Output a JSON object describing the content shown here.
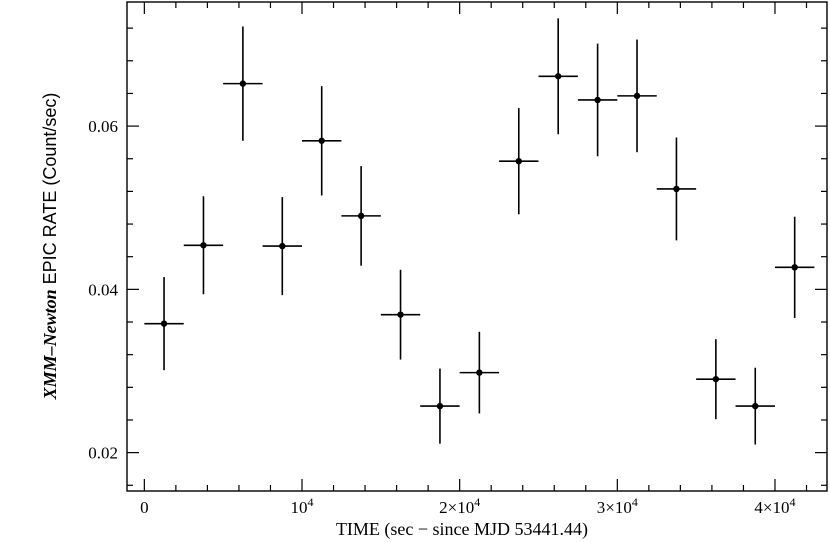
{
  "chart_data": {
    "type": "scatter",
    "title": "",
    "xlabel": "TIME (sec − since MJD 53441.44)",
    "ylabel_italic": "XMM–Newton",
    "ylabel_rest": " EPIC RATE (Count/sec)",
    "xlim": [
      -1100,
      43300
    ],
    "ylim": [
      0.0153,
      0.0752
    ],
    "grid": false,
    "x_ticks": [
      {
        "value": 0,
        "base": "0",
        "exp": ""
      },
      {
        "value": 10000,
        "base": "10",
        "exp": "4"
      },
      {
        "value": 20000,
        "base": "2×10",
        "exp": "4"
      },
      {
        "value": 30000,
        "base": "3×10",
        "exp": "4"
      },
      {
        "value": 40000,
        "base": "4×10",
        "exp": "4"
      }
    ],
    "y_ticks": [
      {
        "value": 0.02,
        "label": "0.02"
      },
      {
        "value": 0.04,
        "label": "0.04"
      },
      {
        "value": 0.06,
        "label": "0.06"
      }
    ],
    "bin_halfwidth": 1250,
    "points": [
      {
        "x": 1250,
        "y": 0.0358,
        "yerr": 0.0057
      },
      {
        "x": 3750,
        "y": 0.0454,
        "yerr": 0.006
      },
      {
        "x": 6250,
        "y": 0.0652,
        "yerr": 0.007
      },
      {
        "x": 8750,
        "y": 0.0453,
        "yerr": 0.006
      },
      {
        "x": 11250,
        "y": 0.0582,
        "yerr": 0.0067
      },
      {
        "x": 13750,
        "y": 0.049,
        "yerr": 0.0061
      },
      {
        "x": 16250,
        "y": 0.0369,
        "yerr": 0.0055
      },
      {
        "x": 18750,
        "y": 0.0257,
        "yerr": 0.0046
      },
      {
        "x": 21250,
        "y": 0.0298,
        "yerr": 0.005
      },
      {
        "x": 23750,
        "y": 0.0557,
        "yerr": 0.0065
      },
      {
        "x": 26250,
        "y": 0.0661,
        "yerr": 0.0071
      },
      {
        "x": 28750,
        "y": 0.0632,
        "yerr": 0.0069
      },
      {
        "x": 31250,
        "y": 0.0637,
        "yerr": 0.0069
      },
      {
        "x": 33750,
        "y": 0.0523,
        "yerr": 0.0063
      },
      {
        "x": 36250,
        "y": 0.029,
        "yerr": 0.0049
      },
      {
        "x": 38750,
        "y": 0.0257,
        "yerr": 0.0047
      },
      {
        "x": 41250,
        "y": 0.0427,
        "yerr": 0.0062
      }
    ]
  }
}
